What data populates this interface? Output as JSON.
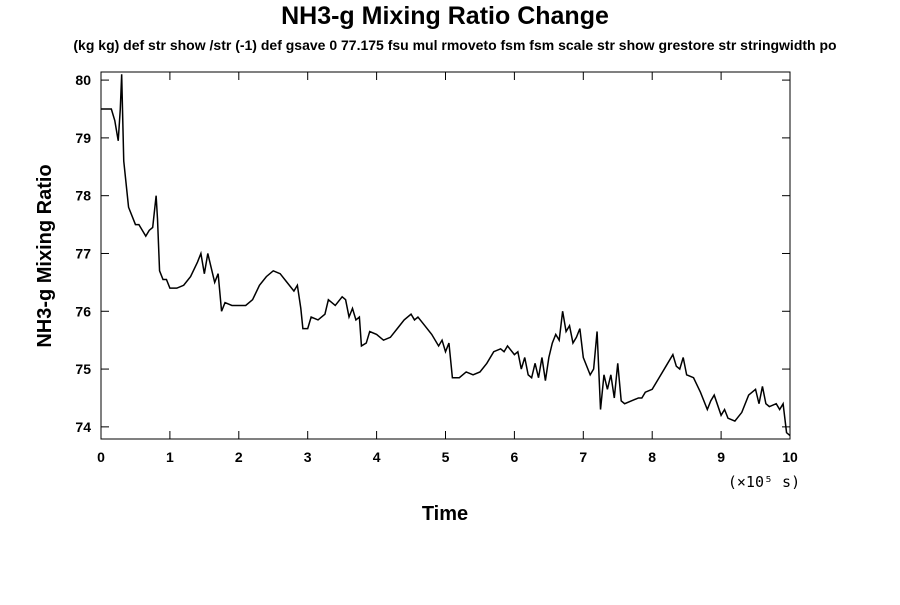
{
  "chart_data": {
    "type": "line",
    "title": "NH3-g Mixing Ratio Change",
    "subtitle": "(kg kg) def str show /str (-1) def gsave 0 77.175 fsu mul rmoveto fsm fsm scale str show grestore str stringwidth po",
    "x_label": "Time",
    "x_unit": "(×10⁵ s)",
    "y_label": "NH3-g Mixing Ratio",
    "xlim": [
      0,
      10
    ],
    "xticks": [
      0,
      1,
      2,
      3,
      4,
      5,
      6,
      7,
      8,
      9,
      10
    ],
    "ylim": [
      73.79,
      80.14
    ],
    "yticks": [
      74,
      75,
      76,
      77,
      78,
      79,
      80
    ],
    "grid": false,
    "series": [
      {
        "color": "#000000",
        "x": [
          0,
          0.1,
          0.15,
          0.2,
          0.25,
          0.28,
          0.3,
          0.33,
          0.4,
          0.5,
          0.55,
          0.6,
          0.65,
          0.7,
          0.75,
          0.8,
          0.82,
          0.85,
          0.9,
          0.95,
          1.0,
          1.1,
          1.2,
          1.3,
          1.4,
          1.45,
          1.5,
          1.55,
          1.6,
          1.65,
          1.7,
          1.75,
          1.8,
          1.9,
          2.0,
          2.1,
          2.2,
          2.3,
          2.4,
          2.5,
          2.6,
          2.7,
          2.8,
          2.85,
          2.9,
          2.93,
          3.0,
          3.05,
          3.15,
          3.25,
          3.3,
          3.4,
          3.5,
          3.55,
          3.6,
          3.65,
          3.7,
          3.75,
          3.78,
          3.85,
          3.9,
          4.0,
          4.1,
          4.2,
          4.3,
          4.4,
          4.5,
          4.55,
          4.6,
          4.7,
          4.8,
          4.9,
          4.95,
          5.0,
          5.05,
          5.1,
          5.2,
          5.3,
          5.4,
          5.5,
          5.6,
          5.7,
          5.8,
          5.85,
          5.9,
          6.0,
          6.05,
          6.1,
          6.15,
          6.2,
          6.25,
          6.3,
          6.35,
          6.4,
          6.45,
          6.5,
          6.55,
          6.6,
          6.65,
          6.7,
          6.75,
          6.8,
          6.85,
          6.9,
          6.95,
          7.0,
          7.1,
          7.15,
          7.2,
          7.25,
          7.3,
          7.35,
          7.4,
          7.45,
          7.5,
          7.55,
          7.6,
          7.7,
          7.8,
          7.85,
          7.9,
          8.0,
          8.1,
          8.2,
          8.3,
          8.35,
          8.4,
          8.45,
          8.5,
          8.6,
          8.7,
          8.8,
          8.85,
          8.9,
          9.0,
          9.05,
          9.1,
          9.2,
          9.3,
          9.4,
          9.5,
          9.55,
          9.6,
          9.65,
          9.7,
          9.8,
          9.85,
          9.9,
          9.95,
          10
        ],
        "values": [
          79.5,
          79.5,
          79.5,
          79.3,
          78.95,
          79.5,
          80.1,
          78.6,
          77.8,
          77.5,
          77.5,
          77.4,
          77.3,
          77.4,
          77.45,
          78.0,
          77.6,
          76.7,
          76.55,
          76.55,
          76.4,
          76.4,
          76.45,
          76.6,
          76.85,
          77.0,
          76.65,
          77.0,
          76.75,
          76.5,
          76.65,
          76.0,
          76.15,
          76.1,
          76.1,
          76.1,
          76.2,
          76.45,
          76.6,
          76.7,
          76.65,
          76.5,
          76.35,
          76.45,
          76.05,
          75.7,
          75.7,
          75.9,
          75.85,
          75.95,
          76.2,
          76.1,
          76.25,
          76.2,
          75.9,
          76.05,
          75.85,
          75.9,
          75.4,
          75.45,
          75.65,
          75.6,
          75.5,
          75.55,
          75.7,
          75.85,
          75.95,
          75.85,
          75.9,
          75.75,
          75.6,
          75.4,
          75.5,
          75.3,
          75.45,
          74.85,
          74.85,
          74.95,
          74.9,
          74.95,
          75.1,
          75.3,
          75.35,
          75.3,
          75.4,
          75.25,
          75.3,
          75.0,
          75.2,
          74.9,
          74.85,
          75.1,
          74.85,
          75.2,
          74.8,
          75.2,
          75.45,
          75.6,
          75.5,
          76.0,
          75.65,
          75.75,
          75.45,
          75.55,
          75.7,
          75.2,
          74.9,
          75.0,
          75.65,
          74.3,
          74.9,
          74.65,
          74.9,
          74.5,
          75.1,
          74.45,
          74.4,
          74.45,
          74.5,
          74.5,
          74.6,
          74.65,
          74.85,
          75.05,
          75.25,
          75.05,
          75.0,
          75.2,
          74.9,
          74.85,
          74.6,
          74.3,
          74.45,
          74.55,
          74.2,
          74.3,
          74.15,
          74.1,
          74.25,
          74.55,
          74.65,
          74.4,
          74.7,
          74.4,
          74.35,
          74.4,
          74.3,
          74.4,
          73.9,
          73.85
        ]
      }
    ]
  }
}
